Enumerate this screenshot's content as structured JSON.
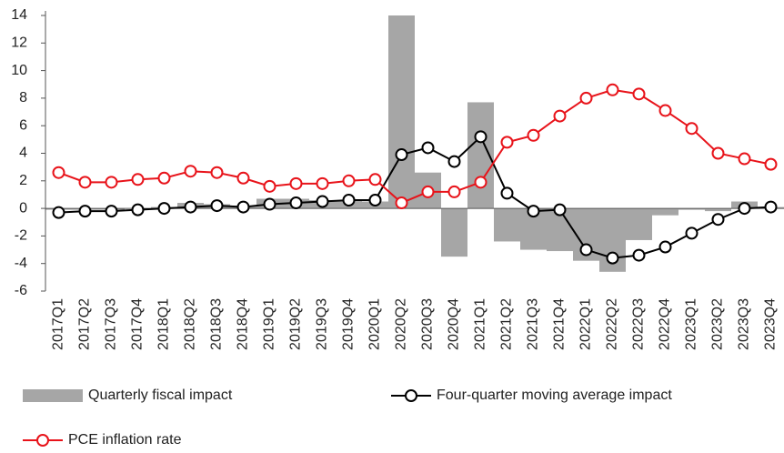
{
  "chart_data": {
    "type": "bar",
    "categories": [
      "2017Q1",
      "2017Q2",
      "2017Q3",
      "2017Q4",
      "2018Q1",
      "2018Q2",
      "2018Q3",
      "2018Q4",
      "2019Q1",
      "2019Q2",
      "2019Q3",
      "2019Q4",
      "2020Q1",
      "2020Q2",
      "2020Q3",
      "2020Q4",
      "2021Q1",
      "2021Q2",
      "2021Q3",
      "2021Q4",
      "2022Q1",
      "2022Q2",
      "2022Q3",
      "2022Q4",
      "2023Q1",
      "2023Q2",
      "2023Q3",
      "2023Q4"
    ],
    "series": [
      {
        "name": "Quarterly fiscal impact",
        "type": "bar",
        "color": "#a6a6a6",
        "values": [
          -0.1,
          -0.1,
          -0.1,
          0,
          0.1,
          0.4,
          0.3,
          0.2,
          0.7,
          0.7,
          0.6,
          0.6,
          0.5,
          14,
          2.6,
          -3.5,
          7.7,
          -2.4,
          -3.0,
          -3.1,
          -3.8,
          -4.6,
          -2.3,
          -0.5,
          -0.1,
          -0.2,
          0.5,
          0.1
        ]
      },
      {
        "name": "Four-quarter moving average impact",
        "type": "line",
        "color": "#000000",
        "values": [
          -0.3,
          -0.2,
          -0.2,
          -0.1,
          0,
          0.1,
          0.2,
          0.1,
          0.3,
          0.4,
          0.5,
          0.6,
          0.6,
          3.9,
          4.4,
          3.4,
          5.2,
          1.1,
          -0.2,
          -0.1,
          -3.0,
          -3.6,
          -3.4,
          -2.8,
          -1.8,
          -0.8,
          0,
          0.1
        ]
      },
      {
        "name": "PCE inflation rate",
        "type": "line",
        "color": "#e8131a",
        "values": [
          2.6,
          1.9,
          1.9,
          2.1,
          2.2,
          2.7,
          2.6,
          2.2,
          1.6,
          1.8,
          1.8,
          2.0,
          2.1,
          0.4,
          1.2,
          1.2,
          1.9,
          4.8,
          5.3,
          6.7,
          8.0,
          8.6,
          8.3,
          7.1,
          5.8,
          4.0,
          3.6,
          3.2
        ]
      }
    ],
    "ylim": [
      -6,
      14
    ],
    "yticks": [
      -6,
      -4,
      -2,
      0,
      2,
      4,
      6,
      8,
      10,
      12,
      14
    ],
    "grid": false,
    "legend": "bottom"
  }
}
